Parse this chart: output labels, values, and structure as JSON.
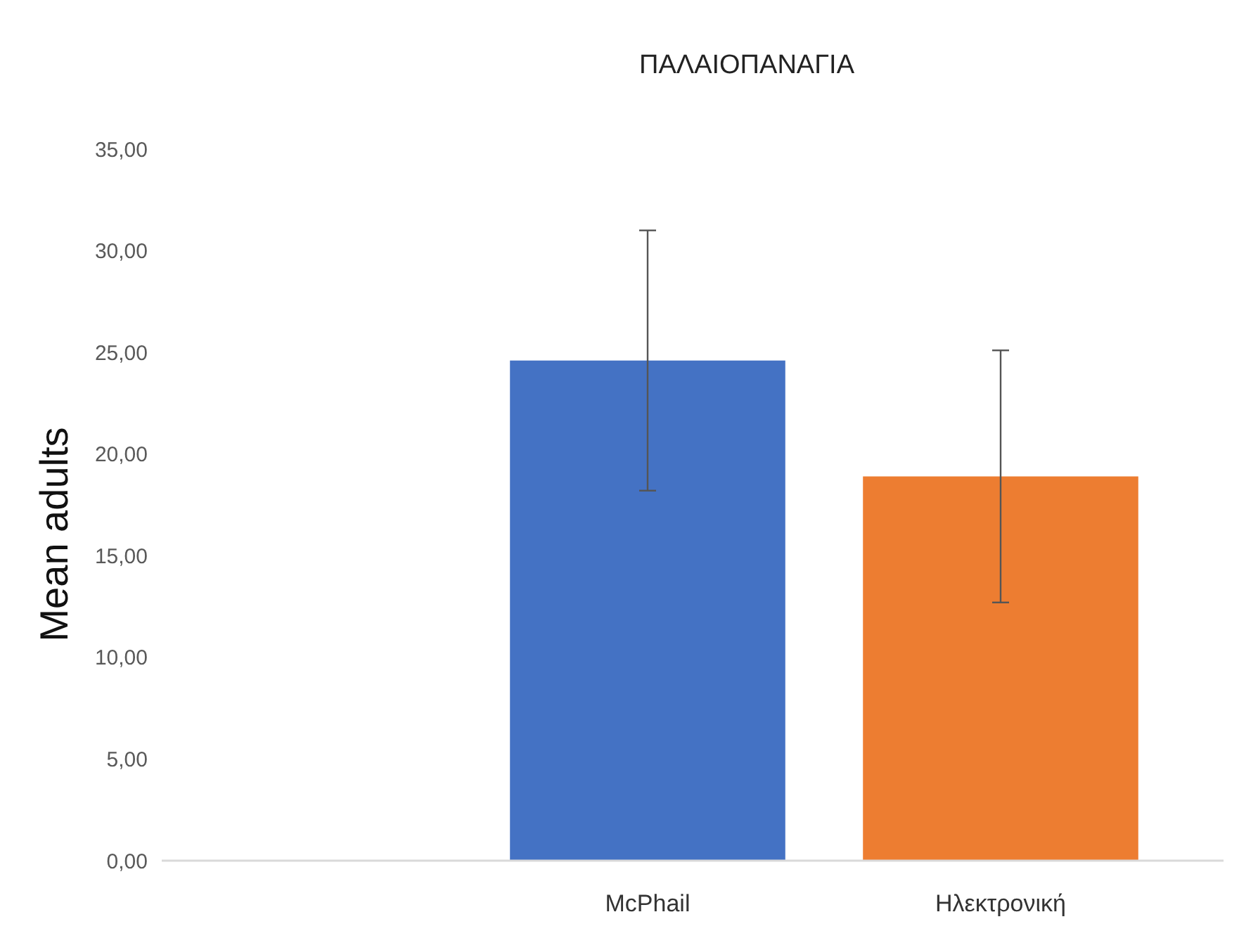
{
  "chart_data": {
    "type": "bar",
    "title": "ΠΑΛΑΙΟΠΑΝΑΓΙΑ",
    "ylabel": "Mean adults",
    "categories": [
      null,
      "McPhail",
      "Ηλεκτρονική"
    ],
    "values": [
      null,
      24.6,
      18.9
    ],
    "colors": [
      null,
      "#4472c4",
      "#ed7d31"
    ],
    "errors": [
      null,
      6.4,
      6.2
    ],
    "ylim": [
      0,
      35
    ],
    "yticks": [
      {
        "value": 0,
        "label": "0,00"
      },
      {
        "value": 5,
        "label": "5,00"
      },
      {
        "value": 10,
        "label": "10,00"
      },
      {
        "value": 15,
        "label": "15,00"
      },
      {
        "value": 20,
        "label": "20,00"
      },
      {
        "value": 25,
        "label": "25,00"
      },
      {
        "value": 30,
        "label": "30,00"
      },
      {
        "value": 35,
        "label": "35,00"
      }
    ],
    "grid": false
  }
}
